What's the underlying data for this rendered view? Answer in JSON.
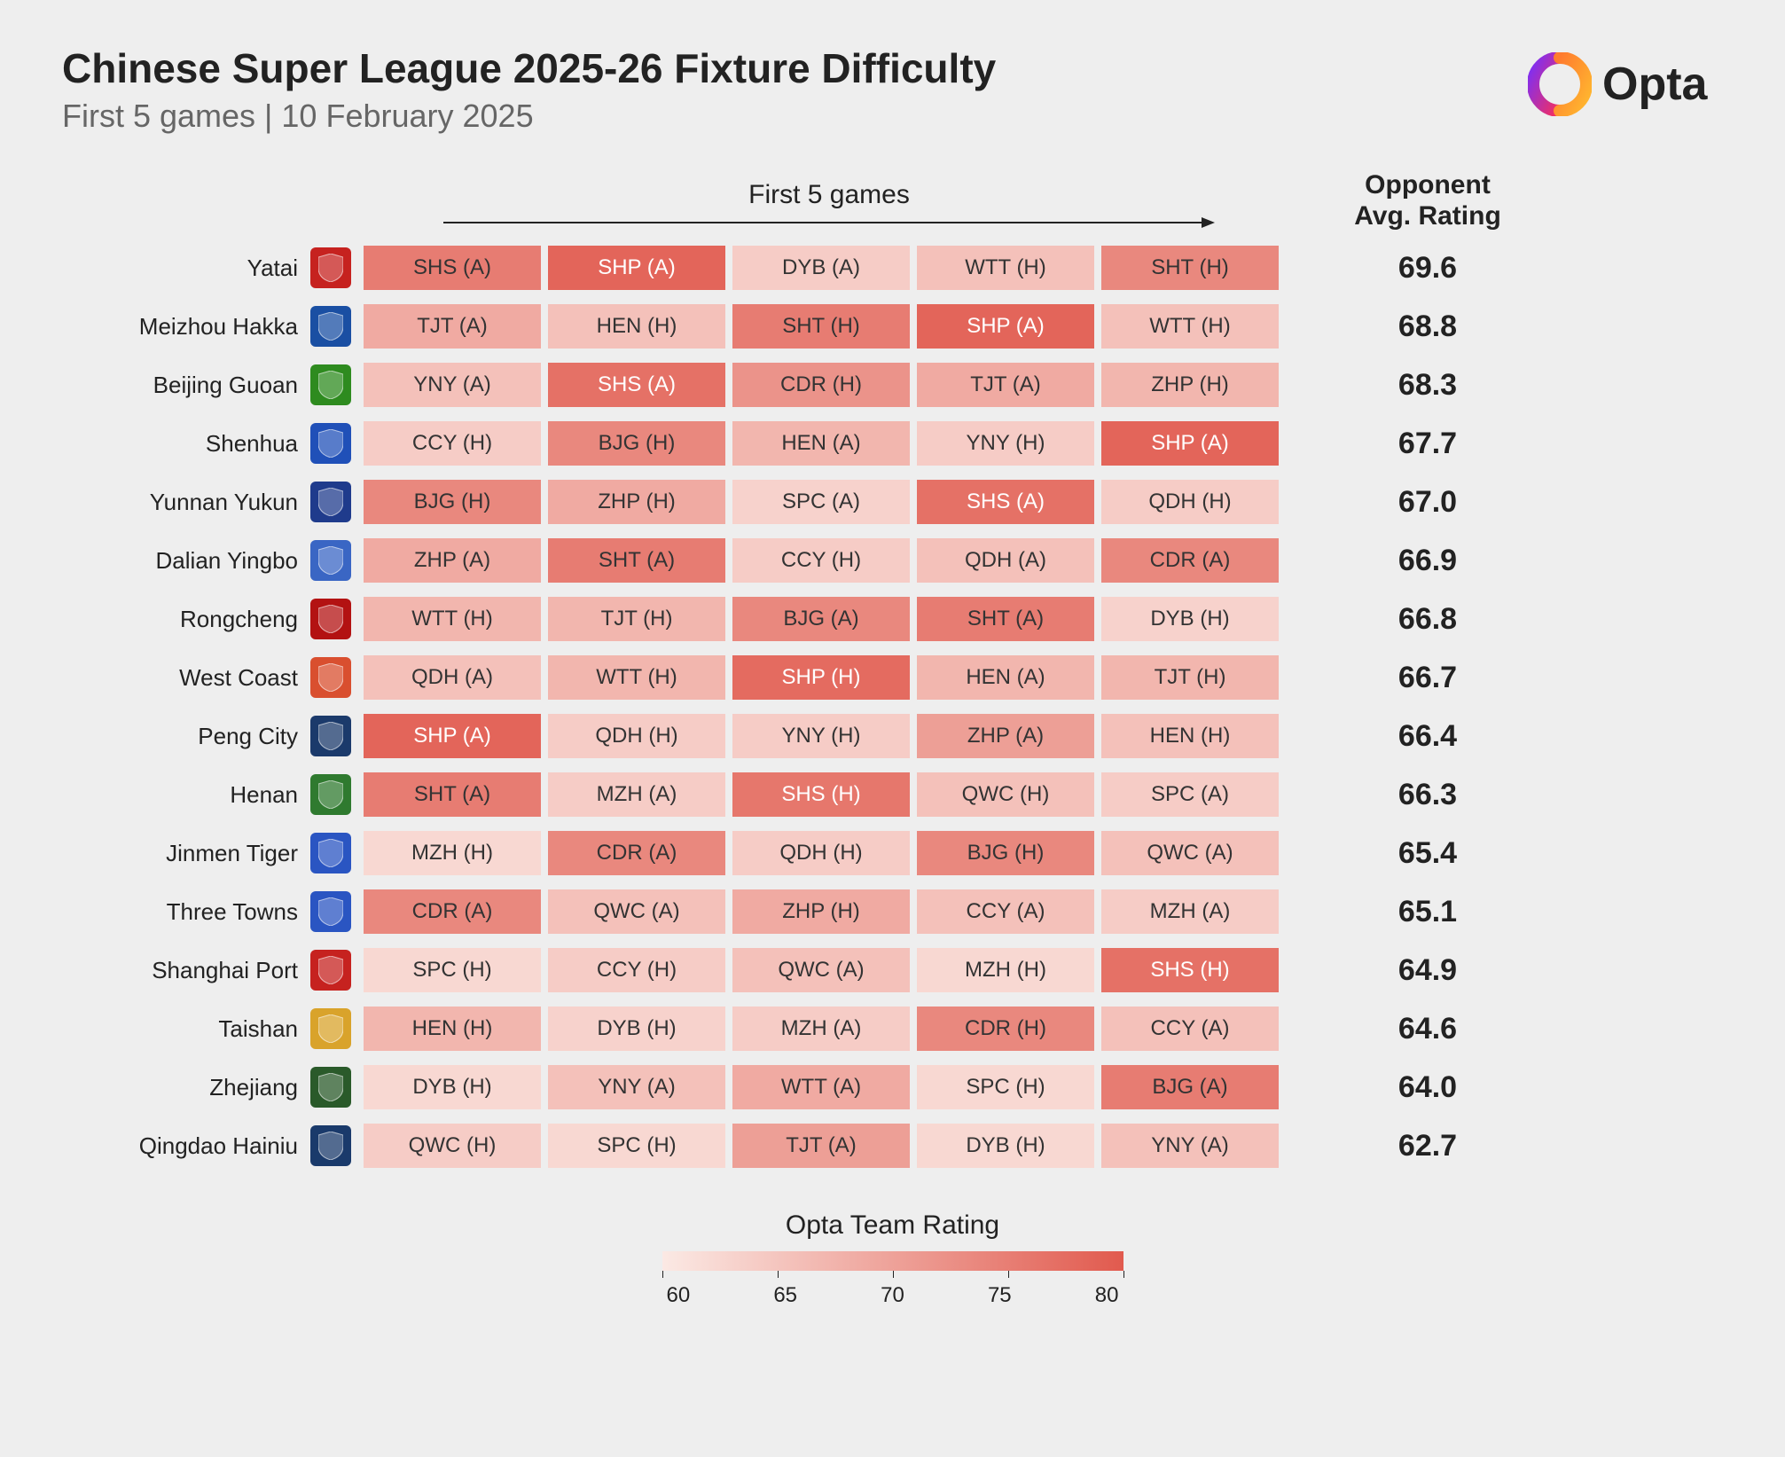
{
  "title": "Chinese Super League 2025-26 Fixture Difficulty",
  "subtitle": "First 5 games | 10 February 2025",
  "brand": "Opta",
  "games_header": "First 5 games",
  "rating_header_line1": "Opponent",
  "rating_header_line2": "Avg. Rating",
  "legend_title": "Opta Team Rating",
  "legend_ticks": [
    "60",
    "65",
    "70",
    "75",
    "80"
  ],
  "colors": {
    "background": "#eeeeee",
    "text_dark": "#222222",
    "text_muted": "#666666",
    "gradient_low": "#fbe9e4",
    "gradient_high": "#e15a4e"
  },
  "difficulty_scale": {
    "min": 55,
    "max": 80
  },
  "fontsize": {
    "title": 46,
    "subtitle": 36,
    "header": 30,
    "team": 26,
    "cell": 24,
    "rating": 34,
    "legend": 30,
    "tick": 24
  },
  "teams": [
    {
      "name": "Yatai",
      "badge_color": "#c6221f",
      "rating": "69.6",
      "games": [
        {
          "label": "SHS (A)",
          "difficulty": 74
        },
        {
          "label": "SHP (A)",
          "difficulty": 78
        },
        {
          "label": "DYB (A)",
          "difficulty": 60
        },
        {
          "label": "WTT (H)",
          "difficulty": 62
        },
        {
          "label": "SHT (H)",
          "difficulty": 72
        }
      ]
    },
    {
      "name": "Meizhou Hakka",
      "badge_color": "#1a4fa3",
      "rating": "68.8",
      "games": [
        {
          "label": "TJT (A)",
          "difficulty": 66
        },
        {
          "label": "HEN (H)",
          "difficulty": 62
        },
        {
          "label": "SHT (H)",
          "difficulty": 74
        },
        {
          "label": "SHP (A)",
          "difficulty": 78
        },
        {
          "label": "WTT (H)",
          "difficulty": 62
        }
      ]
    },
    {
      "name": "Beijing Guoan",
      "badge_color": "#2e8b1f",
      "rating": "68.3",
      "games": [
        {
          "label": "YNY (A)",
          "difficulty": 62
        },
        {
          "label": "SHS (A)",
          "difficulty": 76
        },
        {
          "label": "CDR (H)",
          "difficulty": 70
        },
        {
          "label": "TJT (A)",
          "difficulty": 66
        },
        {
          "label": "ZHP (H)",
          "difficulty": 64
        }
      ]
    },
    {
      "name": "Shenhua",
      "badge_color": "#2050b8",
      "rating": "67.7",
      "games": [
        {
          "label": "CCY (H)",
          "difficulty": 60
        },
        {
          "label": "BJG (H)",
          "difficulty": 72
        },
        {
          "label": "HEN (A)",
          "difficulty": 64
        },
        {
          "label": "YNY (H)",
          "difficulty": 60
        },
        {
          "label": "SHP (A)",
          "difficulty": 78
        }
      ]
    },
    {
      "name": "Yunnan Yukun",
      "badge_color": "#1f3b8c",
      "rating": "67.0",
      "games": [
        {
          "label": "BJG (H)",
          "difficulty": 72
        },
        {
          "label": "ZHP (H)",
          "difficulty": 66
        },
        {
          "label": "SPC (A)",
          "difficulty": 59
        },
        {
          "label": "SHS (A)",
          "difficulty": 76
        },
        {
          "label": "QDH (H)",
          "difficulty": 60
        }
      ]
    },
    {
      "name": "Dalian Yingbo",
      "badge_color": "#3a66c4",
      "rating": "66.9",
      "games": [
        {
          "label": "ZHP (A)",
          "difficulty": 66
        },
        {
          "label": "SHT (A)",
          "difficulty": 74
        },
        {
          "label": "CCY (H)",
          "difficulty": 60
        },
        {
          "label": "QDH (A)",
          "difficulty": 62
        },
        {
          "label": "CDR (A)",
          "difficulty": 72
        }
      ]
    },
    {
      "name": "Rongcheng",
      "badge_color": "#b31212",
      "rating": "66.8",
      "games": [
        {
          "label": "WTT (H)",
          "difficulty": 64
        },
        {
          "label": "TJT (H)",
          "difficulty": 64
        },
        {
          "label": "BJG (A)",
          "difficulty": 72
        },
        {
          "label": "SHT (A)",
          "difficulty": 74
        },
        {
          "label": "DYB (H)",
          "difficulty": 59
        }
      ]
    },
    {
      "name": "West Coast",
      "badge_color": "#d94f2f",
      "rating": "66.7",
      "games": [
        {
          "label": "QDH (A)",
          "difficulty": 62
        },
        {
          "label": "WTT (H)",
          "difficulty": 64
        },
        {
          "label": "SHP (H)",
          "difficulty": 77
        },
        {
          "label": "HEN (A)",
          "difficulty": 64
        },
        {
          "label": "TJT (H)",
          "difficulty": 64
        }
      ]
    },
    {
      "name": "Peng City",
      "badge_color": "#1b3a6b",
      "rating": "66.4",
      "games": [
        {
          "label": "SHP (A)",
          "difficulty": 78
        },
        {
          "label": "QDH (H)",
          "difficulty": 60
        },
        {
          "label": "YNY (H)",
          "difficulty": 60
        },
        {
          "label": "ZHP (A)",
          "difficulty": 68
        },
        {
          "label": "HEN (H)",
          "difficulty": 62
        }
      ]
    },
    {
      "name": "Henan",
      "badge_color": "#2f7a2f",
      "rating": "66.3",
      "games": [
        {
          "label": "SHT (A)",
          "difficulty": 74
        },
        {
          "label": "MZH (A)",
          "difficulty": 60
        },
        {
          "label": "SHS (H)",
          "difficulty": 75
        },
        {
          "label": "QWC (H)",
          "difficulty": 62
        },
        {
          "label": "SPC (A)",
          "difficulty": 60
        }
      ]
    },
    {
      "name": "Jinmen Tiger",
      "badge_color": "#2a55c2",
      "rating": "65.4",
      "games": [
        {
          "label": "MZH (H)",
          "difficulty": 58
        },
        {
          "label": "CDR (A)",
          "difficulty": 72
        },
        {
          "label": "QDH (H)",
          "difficulty": 60
        },
        {
          "label": "BJG (H)",
          "difficulty": 72
        },
        {
          "label": "QWC (A)",
          "difficulty": 62
        }
      ]
    },
    {
      "name": "Three Towns",
      "badge_color": "#2a55c2",
      "rating": "65.1",
      "games": [
        {
          "label": "CDR (A)",
          "difficulty": 72
        },
        {
          "label": "QWC (A)",
          "difficulty": 62
        },
        {
          "label": "ZHP (H)",
          "difficulty": 66
        },
        {
          "label": "CCY (A)",
          "difficulty": 62
        },
        {
          "label": "MZH (A)",
          "difficulty": 60
        }
      ]
    },
    {
      "name": "Shanghai Port",
      "badge_color": "#c6221f",
      "rating": "64.9",
      "games": [
        {
          "label": "SPC (H)",
          "difficulty": 58
        },
        {
          "label": "CCY (H)",
          "difficulty": 60
        },
        {
          "label": "QWC (A)",
          "difficulty": 62
        },
        {
          "label": "MZH (H)",
          "difficulty": 58
        },
        {
          "label": "SHS (H)",
          "difficulty": 76
        }
      ]
    },
    {
      "name": "Taishan",
      "badge_color": "#d9a32b",
      "rating": "64.6",
      "games": [
        {
          "label": "HEN (H)",
          "difficulty": 64
        },
        {
          "label": "DYB (H)",
          "difficulty": 59
        },
        {
          "label": "MZH (A)",
          "difficulty": 60
        },
        {
          "label": "CDR (H)",
          "difficulty": 72
        },
        {
          "label": "CCY (A)",
          "difficulty": 62
        }
      ]
    },
    {
      "name": "Zhejiang",
      "badge_color": "#2a5a2a",
      "rating": "64.0",
      "games": [
        {
          "label": "DYB (H)",
          "difficulty": 58
        },
        {
          "label": "YNY (A)",
          "difficulty": 62
        },
        {
          "label": "WTT (A)",
          "difficulty": 66
        },
        {
          "label": "SPC (H)",
          "difficulty": 58
        },
        {
          "label": "BJG (A)",
          "difficulty": 74
        }
      ]
    },
    {
      "name": "Qingdao Hainiu",
      "badge_color": "#1a3a6b",
      "rating": "62.7",
      "games": [
        {
          "label": "QWC (H)",
          "difficulty": 60
        },
        {
          "label": "SPC (H)",
          "difficulty": 58
        },
        {
          "label": "TJT (A)",
          "difficulty": 68
        },
        {
          "label": "DYB (H)",
          "difficulty": 58
        },
        {
          "label": "YNY (A)",
          "difficulty": 62
        }
      ]
    }
  ]
}
